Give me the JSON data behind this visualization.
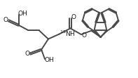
{
  "bg_color": "#ffffff",
  "line_color": "#4a4a4a",
  "line_width": 1.4,
  "text_color": "#1a1a1a",
  "fig_width": 1.97,
  "fig_height": 1.11,
  "dpi": 100,
  "xlim": [
    0,
    10
  ],
  "ylim": [
    0,
    5.5
  ]
}
